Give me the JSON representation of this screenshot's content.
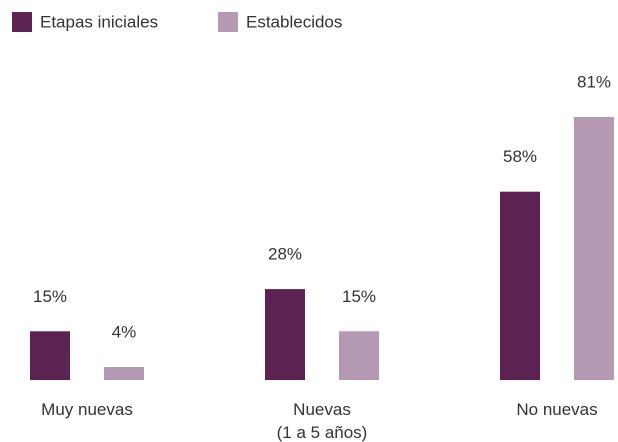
{
  "chart_data": {
    "type": "bar",
    "categories": [
      "Muy nuevas",
      "Nuevas\n(1 a 5 años)",
      "No nuevas"
    ],
    "series": [
      {
        "name": "Etapas iniciales",
        "color": "#5c2251",
        "values": [
          15,
          28,
          58
        ],
        "value_labels": [
          "15%",
          "28%",
          "58%"
        ]
      },
      {
        "name": "Establecidos",
        "color": "#b599b3",
        "values": [
          4,
          15,
          81
        ],
        "value_labels": [
          "4%",
          "15%",
          "81%"
        ]
      }
    ],
    "legend": "top-left"
  }
}
